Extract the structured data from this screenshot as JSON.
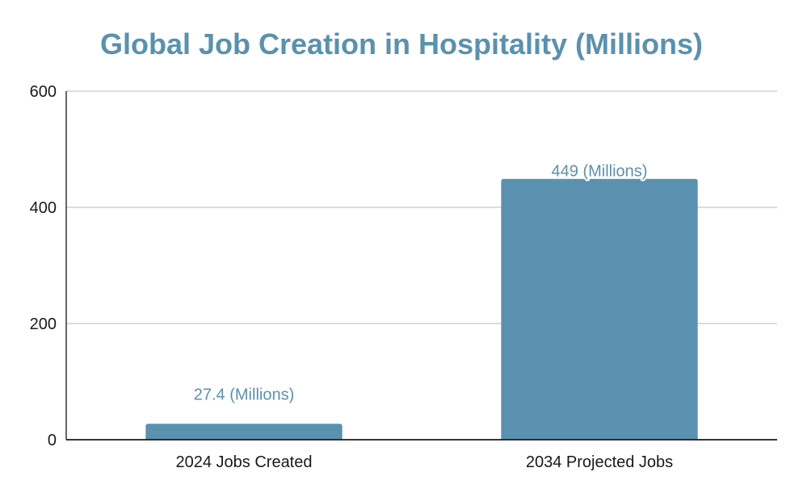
{
  "chart_data": {
    "type": "bar",
    "title": "Global Job Creation in Hospitality (Millions)",
    "categories": [
      "2024 Jobs Created",
      "2034 Projected Jobs"
    ],
    "values": [
      27.4,
      449
    ],
    "data_labels": [
      "27.4 (Millions)",
      "449 (Millions)"
    ],
    "yticks": [
      0,
      200,
      400,
      600
    ],
    "ylim": [
      0,
      600
    ],
    "xlabel": "",
    "ylabel": "",
    "grid": true,
    "legend": "none",
    "bar_color": "#5a91ae",
    "title_color": "#5a91ae"
  }
}
